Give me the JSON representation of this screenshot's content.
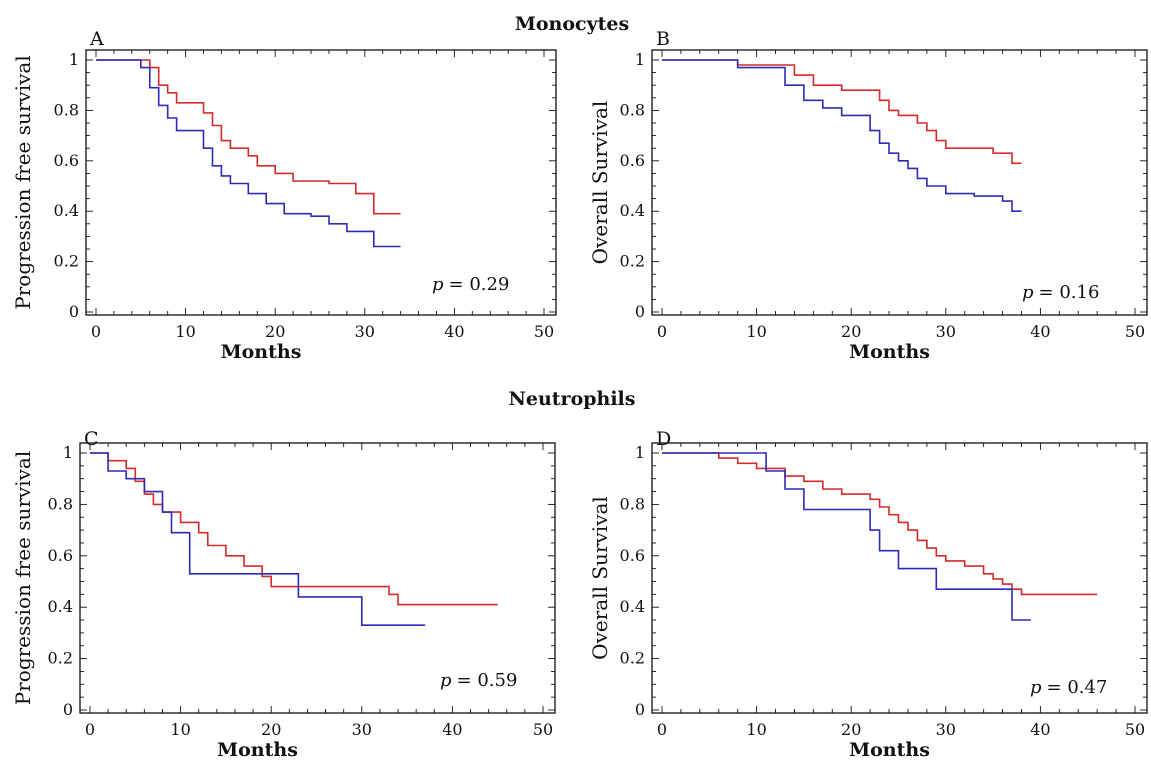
{
  "figure": {
    "monocytes_title": "Monocytes",
    "neutrophils_title": "Neutrophils"
  },
  "colors": {
    "red": "#d42a2a",
    "blue": "#2b2bb8",
    "axis": "#111111"
  },
  "chart_data": [
    {
      "type": "line",
      "panel": "A",
      "group": "Monocytes",
      "xlabel": "Months",
      "ylabel": "Progression free survival",
      "xlim": [
        0,
        50
      ],
      "ylim": [
        0,
        1
      ],
      "xticks": [
        "0",
        "10",
        "20",
        "30",
        "40",
        "50"
      ],
      "yticks": [
        "0",
        "0.2",
        "0.4",
        "0.6",
        "0.8",
        "1"
      ],
      "p_label": "p",
      "p_value": "= 0.29",
      "series": [
        {
          "color": "red",
          "steps": [
            [
              0,
              1
            ],
            [
              6,
              0.97
            ],
            [
              7,
              0.9
            ],
            [
              8,
              0.87
            ],
            [
              9,
              0.83
            ],
            [
              12,
              0.79
            ],
            [
              13,
              0.74
            ],
            [
              14,
              0.68
            ],
            [
              15,
              0.65
            ],
            [
              17,
              0.62
            ],
            [
              18,
              0.58
            ],
            [
              20,
              0.55
            ],
            [
              22,
              0.52
            ],
            [
              26,
              0.51
            ],
            [
              29,
              0.47
            ],
            [
              31,
              0.39
            ],
            [
              34,
              0.39
            ]
          ]
        },
        {
          "color": "blue",
          "steps": [
            [
              0,
              1
            ],
            [
              5,
              0.97
            ],
            [
              6,
              0.89
            ],
            [
              7,
              0.82
            ],
            [
              8,
              0.77
            ],
            [
              9,
              0.72
            ],
            [
              12,
              0.65
            ],
            [
              13,
              0.58
            ],
            [
              14,
              0.54
            ],
            [
              15,
              0.51
            ],
            [
              17,
              0.47
            ],
            [
              19,
              0.43
            ],
            [
              21,
              0.39
            ],
            [
              24,
              0.38
            ],
            [
              26,
              0.35
            ],
            [
              28,
              0.32
            ],
            [
              31,
              0.26
            ],
            [
              34,
              0.26
            ]
          ]
        }
      ]
    },
    {
      "type": "line",
      "panel": "B",
      "group": "Monocytes",
      "xlabel": "Months",
      "ylabel": "Overall Survival",
      "xlim": [
        0,
        50
      ],
      "ylim": [
        0,
        1
      ],
      "xticks": [
        "0",
        "10",
        "20",
        "30",
        "40",
        "50"
      ],
      "yticks": [
        "0",
        "0.2",
        "0.4",
        "0.6",
        "0.8",
        "1"
      ],
      "p_label": "p",
      "p_value": "= 0.16",
      "series": [
        {
          "color": "red",
          "steps": [
            [
              0,
              1
            ],
            [
              8,
              0.98
            ],
            [
              14,
              0.94
            ],
            [
              16,
              0.9
            ],
            [
              19,
              0.88
            ],
            [
              23,
              0.84
            ],
            [
              24,
              0.8
            ],
            [
              25,
              0.78
            ],
            [
              27,
              0.75
            ],
            [
              28,
              0.72
            ],
            [
              29,
              0.68
            ],
            [
              30,
              0.65
            ],
            [
              35,
              0.63
            ],
            [
              37,
              0.59
            ],
            [
              38,
              0.59
            ]
          ]
        },
        {
          "color": "blue",
          "steps": [
            [
              0,
              1
            ],
            [
              8,
              0.97
            ],
            [
              13,
              0.9
            ],
            [
              15,
              0.84
            ],
            [
              17,
              0.81
            ],
            [
              19,
              0.78
            ],
            [
              22,
              0.72
            ],
            [
              23,
              0.67
            ],
            [
              24,
              0.63
            ],
            [
              25,
              0.6
            ],
            [
              26,
              0.57
            ],
            [
              27,
              0.53
            ],
            [
              28,
              0.5
            ],
            [
              30,
              0.47
            ],
            [
              33,
              0.46
            ],
            [
              36,
              0.44
            ],
            [
              37,
              0.4
            ],
            [
              38,
              0.4
            ]
          ]
        }
      ]
    },
    {
      "type": "line",
      "panel": "C",
      "group": "Neutrophils",
      "xlabel": "Months",
      "ylabel": "Progression free survival",
      "xlim": [
        0,
        50
      ],
      "ylim": [
        0,
        1
      ],
      "xticks": [
        "0",
        "10",
        "20",
        "30",
        "40",
        "50"
      ],
      "yticks": [
        "0",
        "0.2",
        "0.4",
        "0.6",
        "0.8",
        "1"
      ],
      "p_label": "p",
      "p_value": "= 0.59",
      "series": [
        {
          "color": "red",
          "steps": [
            [
              0,
              1
            ],
            [
              2,
              0.97
            ],
            [
              4,
              0.94
            ],
            [
              5,
              0.89
            ],
            [
              6,
              0.84
            ],
            [
              7,
              0.8
            ],
            [
              8,
              0.77
            ],
            [
              10,
              0.73
            ],
            [
              12,
              0.69
            ],
            [
              13,
              0.64
            ],
            [
              15,
              0.6
            ],
            [
              17,
              0.56
            ],
            [
              19,
              0.52
            ],
            [
              20,
              0.48
            ],
            [
              33,
              0.45
            ],
            [
              34,
              0.41
            ],
            [
              45,
              0.41
            ]
          ]
        },
        {
          "color": "blue",
          "steps": [
            [
              0,
              1
            ],
            [
              2,
              0.93
            ],
            [
              4,
              0.9
            ],
            [
              6,
              0.85
            ],
            [
              8,
              0.77
            ],
            [
              9,
              0.69
            ],
            [
              11,
              0.53
            ],
            [
              20,
              0.53
            ],
            [
              23,
              0.44
            ],
            [
              30,
              0.33
            ],
            [
              37,
              0.33
            ]
          ]
        }
      ]
    },
    {
      "type": "line",
      "panel": "D",
      "group": "Neutrophils",
      "xlabel": "Months",
      "ylabel": "Overall Survival",
      "xlim": [
        0,
        50
      ],
      "ylim": [
        0,
        1
      ],
      "xticks": [
        "0",
        "10",
        "20",
        "30",
        "40",
        "50"
      ],
      "yticks": [
        "0",
        "0.2",
        "0.4",
        "0.6",
        "0.8",
        "1"
      ],
      "p_label": "p",
      "p_value": "= 0.47",
      "series": [
        {
          "color": "red",
          "steps": [
            [
              0,
              1
            ],
            [
              6,
              0.98
            ],
            [
              8,
              0.96
            ],
            [
              10,
              0.94
            ],
            [
              13,
              0.91
            ],
            [
              15,
              0.89
            ],
            [
              17,
              0.86
            ],
            [
              19,
              0.84
            ],
            [
              22,
              0.82
            ],
            [
              23,
              0.79
            ],
            [
              24,
              0.76
            ],
            [
              25,
              0.73
            ],
            [
              26,
              0.7
            ],
            [
              27,
              0.66
            ],
            [
              28,
              0.63
            ],
            [
              29,
              0.6
            ],
            [
              30,
              0.58
            ],
            [
              32,
              0.56
            ],
            [
              34,
              0.53
            ],
            [
              35,
              0.51
            ],
            [
              36,
              0.49
            ],
            [
              37,
              0.47
            ],
            [
              38,
              0.45
            ],
            [
              46,
              0.45
            ]
          ]
        },
        {
          "color": "blue",
          "steps": [
            [
              0,
              1
            ],
            [
              11,
              0.93
            ],
            [
              13,
              0.86
            ],
            [
              15,
              0.78
            ],
            [
              22,
              0.7
            ],
            [
              23,
              0.62
            ],
            [
              25,
              0.55
            ],
            [
              29,
              0.47
            ],
            [
              37,
              0.35
            ],
            [
              39,
              0.35
            ]
          ]
        }
      ]
    }
  ]
}
